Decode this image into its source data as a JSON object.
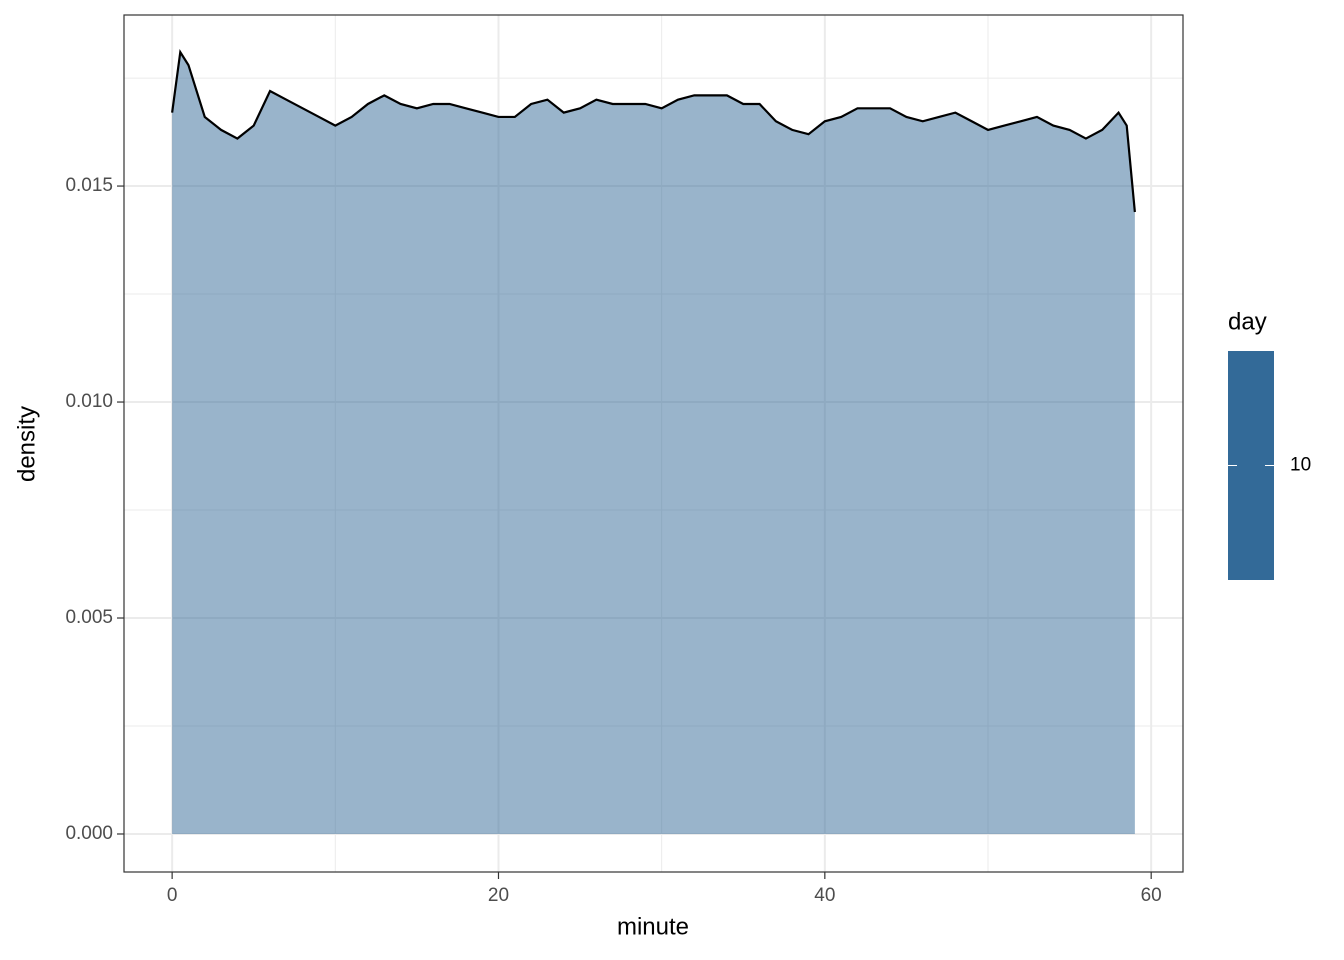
{
  "chart_data": {
    "type": "density",
    "x_label": "minute",
    "y_label": "density",
    "x": [
      0,
      0.5,
      1,
      2,
      3,
      4,
      5,
      6,
      7,
      8,
      9,
      10,
      11,
      12,
      13,
      14,
      15,
      16,
      17,
      18,
      19,
      20,
      21,
      22,
      23,
      24,
      25,
      26,
      27,
      28,
      29,
      30,
      31,
      32,
      33,
      34,
      35,
      36,
      37,
      38,
      39,
      40,
      41,
      42,
      43,
      44,
      45,
      46,
      47,
      48,
      49,
      50,
      51,
      52,
      53,
      54,
      55,
      56,
      57,
      58,
      58.5,
      59
    ],
    "values": [
      0.0167,
      0.0181,
      0.0178,
      0.0166,
      0.0163,
      0.0161,
      0.0164,
      0.0172,
      0.017,
      0.0168,
      0.0166,
      0.0164,
      0.0166,
      0.0169,
      0.0171,
      0.0169,
      0.0168,
      0.0169,
      0.0169,
      0.0168,
      0.0167,
      0.0166,
      0.0166,
      0.0169,
      0.017,
      0.0167,
      0.0168,
      0.017,
      0.0169,
      0.0169,
      0.0169,
      0.0168,
      0.017,
      0.0171,
      0.0171,
      0.0171,
      0.0169,
      0.0169,
      0.0165,
      0.0163,
      0.0162,
      0.0165,
      0.0166,
      0.0168,
      0.0168,
      0.0168,
      0.0166,
      0.0165,
      0.0166,
      0.0167,
      0.0165,
      0.0163,
      0.0164,
      0.0165,
      0.0166,
      0.0164,
      0.0163,
      0.0161,
      0.0163,
      0.0167,
      0.0164,
      0.0144
    ],
    "fill": "#336a98",
    "fill_opacity": 0.5,
    "line_color": "#000000",
    "xlim": [
      -2.95,
      61.95
    ],
    "xticks": [
      0,
      20,
      40,
      60
    ],
    "xminor": [
      10,
      30,
      50
    ],
    "ylim": [
      -0.00088,
      0.01896
    ],
    "yticks": [
      {
        "value": 0,
        "label": "0.000"
      },
      {
        "value": 0.005,
        "label": "0.005"
      },
      {
        "value": 0.01,
        "label": "0.010"
      },
      {
        "value": 0.015,
        "label": "0.015"
      }
    ],
    "yminor": [
      0.0025,
      0.0075,
      0.0125,
      0.0175
    ],
    "grid": true,
    "legend": {
      "title": "day",
      "color": "#336a98",
      "ticks": [
        10
      ]
    }
  }
}
